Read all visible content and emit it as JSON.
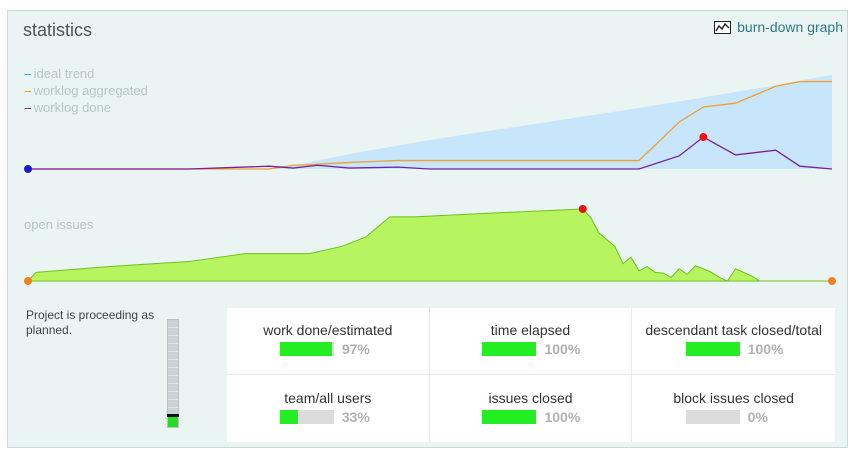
{
  "header": {
    "title": "statistics",
    "burndown_link": "burn-down graph"
  },
  "legend": [
    {
      "label": "ideal trend",
      "color": "#33aadd"
    },
    {
      "label": "worklog aggregated",
      "color": "#f0a030"
    },
    {
      "label": "worklog done",
      "color": "#7a1fa0"
    }
  ],
  "open_issues_label": "open issues",
  "status": {
    "message": "Project is proceeding as planned.",
    "gauge_level": 0.09
  },
  "stats": [
    {
      "label": "work done/estimated",
      "percent_text": "97%",
      "value": 97
    },
    {
      "label": "time elapsed",
      "percent_text": "100%",
      "value": 100
    },
    {
      "label": "descendant task closed/total",
      "percent_text": "100%",
      "value": 100
    },
    {
      "label": "team/all users",
      "percent_text": "33%",
      "value": 33
    },
    {
      "label": "issues closed",
      "percent_text": "100%",
      "value": 100
    },
    {
      "label": "block issues closed",
      "percent_text": "0%",
      "value": 0
    }
  ],
  "chart_data": [
    {
      "type": "line",
      "title": "",
      "x": [
        0,
        0.1,
        0.2,
        0.3,
        0.33,
        0.36,
        0.4,
        0.46,
        0.5,
        0.6,
        0.7,
        0.76,
        0.81,
        0.84,
        0.88,
        0.93,
        0.96,
        1.0
      ],
      "series": [
        {
          "name": "ideal trend",
          "values": [
            0,
            0,
            0,
            0,
            0.03,
            0.09,
            0.16,
            0.25,
            0.31,
            0.44,
            0.57,
            0.65,
            0.72,
            0.76,
            0.82,
            0.89,
            0.94,
            1.0
          ]
        },
        {
          "name": "worklog aggregated",
          "values": [
            0,
            0,
            0,
            0.0,
            0.04,
            0.05,
            0.07,
            0.09,
            0.09,
            0.09,
            0.09,
            0.09,
            0.5,
            0.66,
            0.7,
            0.88,
            0.93,
            0.93
          ]
        },
        {
          "name": "worklog done",
          "values": [
            0,
            0,
            0,
            0.03,
            0.01,
            0.04,
            0.01,
            0.02,
            0.0,
            0.0,
            0.0,
            0.0,
            0.14,
            0.34,
            0.15,
            0.2,
            0.03,
            0.0
          ]
        }
      ],
      "grid": false,
      "legend": "top-left"
    },
    {
      "type": "area",
      "title": "",
      "x": [
        0,
        0.01,
        0.1,
        0.2,
        0.27,
        0.35,
        0.39,
        0.42,
        0.45,
        0.48,
        0.57,
        0.69,
        0.7,
        0.71,
        0.73,
        0.74,
        0.75,
        0.76,
        0.77,
        0.78,
        0.79,
        0.8,
        0.81,
        0.82,
        0.83,
        0.84,
        0.85,
        0.86,
        0.87,
        0.88,
        0.9,
        0.91,
        0.92,
        1.0
      ],
      "series": [
        {
          "name": "open issues",
          "values": [
            0.0,
            0.12,
            0.2,
            0.27,
            0.38,
            0.38,
            0.48,
            0.61,
            0.89,
            0.89,
            0.94,
            1.0,
            0.88,
            0.67,
            0.48,
            0.24,
            0.33,
            0.14,
            0.2,
            0.12,
            0.11,
            0.05,
            0.17,
            0.09,
            0.21,
            0.17,
            0.12,
            0.05,
            0.0,
            0.17,
            0.07,
            0.0,
            0.0,
            0.0
          ]
        }
      ],
      "grid": false
    }
  ]
}
